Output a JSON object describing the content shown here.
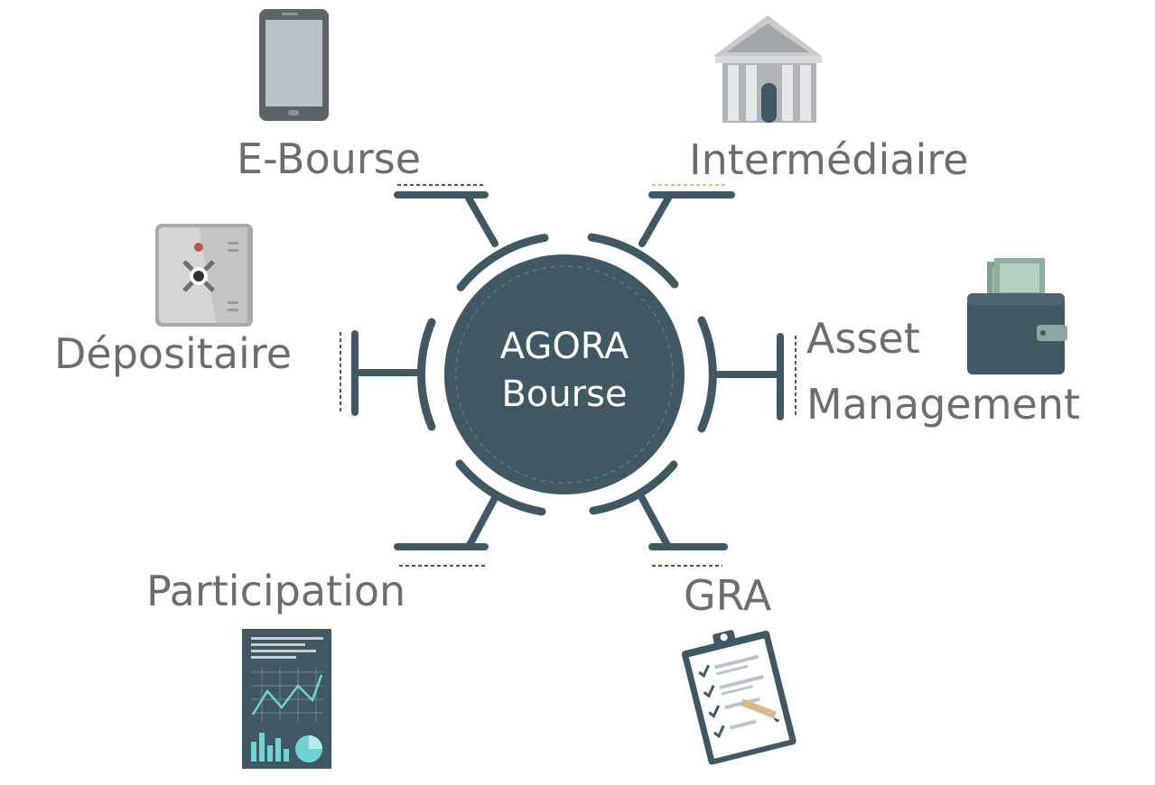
{
  "hub": {
    "line1": "AGORA",
    "line2": "Bourse"
  },
  "nodes": {
    "e_bourse": {
      "label": "E-Bourse",
      "icon": "tablet-icon"
    },
    "intermediaire": {
      "label": "Intermédiaire",
      "icon": "bank-building-icon"
    },
    "depositaire": {
      "label": "Dépositaire",
      "icon": "safe-icon"
    },
    "asset_management": {
      "label_line1": "Asset",
      "label_line2": "Management",
      "icon": "wallet-icon"
    },
    "participation": {
      "label": "Participation",
      "icon": "report-chart-icon"
    },
    "gra": {
      "label": "GRA",
      "icon": "clipboard-checklist-icon"
    }
  },
  "colors": {
    "hub": "#3f5863",
    "connector": "#3f5863",
    "label": "#6b6e70",
    "accent_dash": "#d9b88a"
  }
}
